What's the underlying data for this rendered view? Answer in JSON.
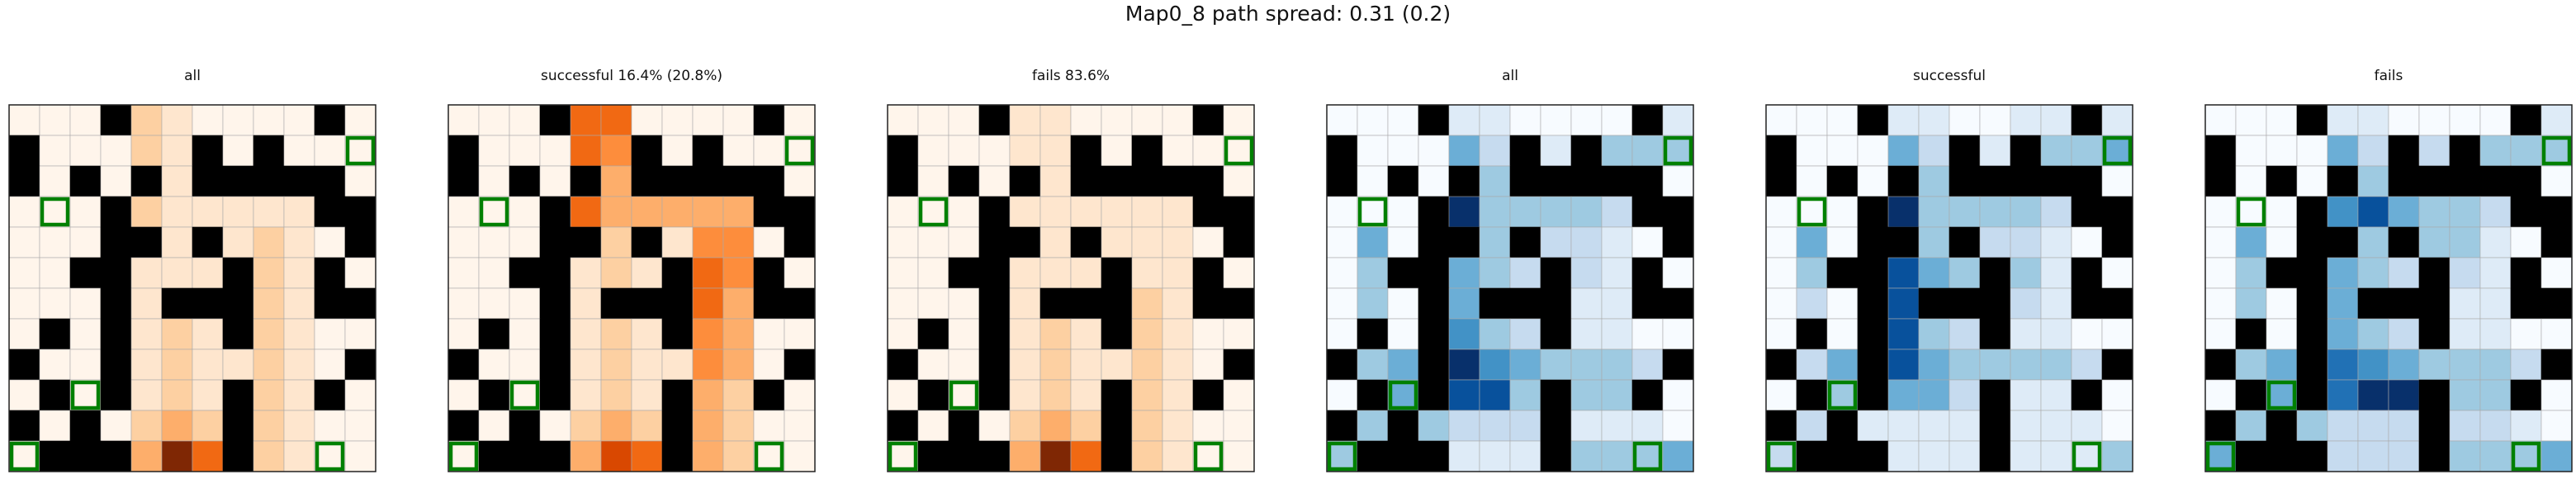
{
  "figure": {
    "suptitle": "Map0_8 path spread: 0.31 (0.2)"
  },
  "colors": {
    "wall": "#000000",
    "goal_outline": "#008000",
    "grid_line": "#aaaaaa",
    "oranges": [
      "#fff5eb",
      "#fee6ce",
      "#fdd0a2",
      "#fdae6b",
      "#fd8d3c",
      "#f16913",
      "#d94801",
      "#a63603",
      "#7f2704"
    ],
    "blues": [
      "#f7fbff",
      "#deebf7",
      "#c6dbef",
      "#9ecae1",
      "#6baed6",
      "#4292c6",
      "#2171b5",
      "#08519c",
      "#08306b"
    ]
  },
  "chart_data": {
    "type": "heatmap",
    "grid_size": [
      12,
      12
    ],
    "walls": [
      [
        0,
        3
      ],
      [
        0,
        10
      ],
      [
        1,
        0
      ],
      [
        1,
        6
      ],
      [
        1,
        8
      ],
      [
        2,
        0
      ],
      [
        2,
        2
      ],
      [
        2,
        4
      ],
      [
        2,
        6
      ],
      [
        2,
        7
      ],
      [
        2,
        8
      ],
      [
        2,
        9
      ],
      [
        2,
        10
      ],
      [
        3,
        3
      ],
      [
        3,
        10
      ],
      [
        3,
        11
      ],
      [
        4,
        3
      ],
      [
        4,
        4
      ],
      [
        4,
        6
      ],
      [
        4,
        11
      ],
      [
        5,
        2
      ],
      [
        5,
        3
      ],
      [
        5,
        7
      ],
      [
        5,
        10
      ],
      [
        6,
        3
      ],
      [
        6,
        5
      ],
      [
        6,
        6
      ],
      [
        6,
        7
      ],
      [
        6,
        10
      ],
      [
        6,
        11
      ],
      [
        7,
        1
      ],
      [
        7,
        3
      ],
      [
        7,
        7
      ],
      [
        8,
        0
      ],
      [
        8,
        3
      ],
      [
        8,
        11
      ],
      [
        9,
        1
      ],
      [
        9,
        3
      ],
      [
        9,
        7
      ],
      [
        9,
        10
      ],
      [
        10,
        0
      ],
      [
        10,
        2
      ],
      [
        10,
        7
      ],
      [
        11,
        1
      ],
      [
        11,
        2
      ],
      [
        11,
        3
      ],
      [
        11,
        7
      ]
    ],
    "goals": [
      [
        1,
        11
      ],
      [
        3,
        1
      ],
      [
        9,
        2
      ],
      [
        11,
        0
      ],
      [
        11,
        10
      ]
    ],
    "panels": [
      {
        "title": "all",
        "colormap": "oranges",
        "values": [
          [
            0,
            0,
            0,
            0,
            2,
            1,
            0,
            0,
            0,
            0,
            0,
            0
          ],
          [
            0,
            0,
            0,
            0,
            2,
            1,
            0,
            0,
            0,
            0,
            0,
            0
          ],
          [
            0,
            0,
            0,
            0,
            2,
            1,
            0,
            0,
            0,
            0,
            0,
            0
          ],
          [
            0,
            0,
            0,
            0,
            2,
            1,
            1,
            1,
            1,
            1,
            0,
            0
          ],
          [
            0,
            0,
            0,
            0,
            1,
            1,
            1,
            1,
            2,
            1,
            0,
            0
          ],
          [
            0,
            0,
            0,
            0,
            1,
            1,
            1,
            1,
            2,
            1,
            0,
            0
          ],
          [
            0,
            0,
            0,
            0,
            1,
            2,
            0,
            0,
            2,
            1,
            0,
            0
          ],
          [
            0,
            0,
            0,
            0,
            1,
            2,
            1,
            0,
            2,
            1,
            0,
            0
          ],
          [
            0,
            0,
            0,
            1,
            1,
            2,
            1,
            1,
            2,
            1,
            0,
            0
          ],
          [
            0,
            0,
            0,
            0,
            1,
            2,
            1,
            0,
            2,
            1,
            0,
            0
          ],
          [
            0,
            0,
            0,
            0,
            2,
            3,
            2,
            0,
            2,
            1,
            0,
            0
          ],
          [
            0,
            0,
            0,
            0,
            3,
            8,
            5,
            0,
            2,
            1,
            0,
            0
          ]
        ]
      },
      {
        "title": "successful 16.4% (20.8%)",
        "colormap": "oranges",
        "values": [
          [
            0,
            0,
            0,
            0,
            5,
            5,
            0,
            0,
            0,
            0,
            0,
            0
          ],
          [
            0,
            0,
            0,
            0,
            5,
            4,
            0,
            0,
            0,
            0,
            0,
            0
          ],
          [
            0,
            0,
            0,
            0,
            5,
            3,
            0,
            0,
            0,
            0,
            0,
            0
          ],
          [
            0,
            0,
            0,
            0,
            5,
            3,
            3,
            3,
            3,
            3,
            0,
            0
          ],
          [
            0,
            0,
            0,
            0,
            2,
            2,
            1,
            1,
            4,
            4,
            0,
            0
          ],
          [
            0,
            0,
            0,
            0,
            1,
            2,
            1,
            1,
            5,
            4,
            0,
            0
          ],
          [
            0,
            0,
            0,
            0,
            1,
            2,
            0,
            0,
            5,
            3,
            0,
            0
          ],
          [
            0,
            0,
            0,
            0,
            1,
            2,
            1,
            0,
            4,
            3,
            0,
            0
          ],
          [
            0,
            0,
            0,
            1,
            1,
            2,
            1,
            1,
            4,
            3,
            0,
            0
          ],
          [
            0,
            0,
            0,
            0,
            1,
            2,
            1,
            0,
            3,
            2,
            0,
            0
          ],
          [
            0,
            0,
            0,
            0,
            2,
            3,
            2,
            0,
            3,
            2,
            0,
            0
          ],
          [
            0,
            0,
            0,
            0,
            3,
            6,
            5,
            0,
            3,
            2,
            0,
            0
          ]
        ]
      },
      {
        "title": "fails 83.6%",
        "colormap": "oranges",
        "values": [
          [
            0,
            0,
            0,
            0,
            1,
            1,
            0,
            0,
            0,
            0,
            0,
            0
          ],
          [
            0,
            0,
            0,
            0,
            1,
            1,
            0,
            0,
            0,
            0,
            0,
            0
          ],
          [
            0,
            0,
            0,
            0,
            1,
            1,
            0,
            0,
            0,
            0,
            0,
            0
          ],
          [
            0,
            0,
            0,
            0,
            1,
            1,
            1,
            1,
            1,
            1,
            0,
            0
          ],
          [
            0,
            0,
            0,
            0,
            1,
            1,
            1,
            1,
            1,
            1,
            0,
            0
          ],
          [
            0,
            0,
            0,
            0,
            1,
            1,
            1,
            1,
            1,
            1,
            0,
            0
          ],
          [
            0,
            0,
            0,
            0,
            1,
            1,
            0,
            0,
            2,
            1,
            0,
            0
          ],
          [
            0,
            0,
            0,
            0,
            1,
            2,
            1,
            0,
            2,
            1,
            0,
            0
          ],
          [
            0,
            0,
            0,
            1,
            1,
            2,
            1,
            1,
            2,
            1,
            0,
            0
          ],
          [
            0,
            0,
            0,
            0,
            1,
            2,
            1,
            0,
            2,
            1,
            0,
            0
          ],
          [
            0,
            0,
            0,
            0,
            2,
            3,
            2,
            0,
            2,
            1,
            0,
            0
          ],
          [
            0,
            0,
            0,
            0,
            3,
            8,
            5,
            0,
            2,
            1,
            0,
            0
          ]
        ]
      },
      {
        "title": "all",
        "colormap": "blues",
        "values": [
          [
            0,
            0,
            0,
            0,
            1,
            1,
            0,
            0,
            0,
            0,
            0,
            1
          ],
          [
            0,
            0,
            0,
            0,
            4,
            2,
            2,
            1,
            2,
            3,
            3,
            3
          ],
          [
            0,
            0,
            0,
            0,
            4,
            3,
            1,
            1,
            1,
            1,
            0,
            0
          ],
          [
            0,
            0,
            0,
            0,
            8,
            3,
            3,
            3,
            3,
            2,
            0,
            0
          ],
          [
            0,
            4,
            0,
            0,
            5,
            3,
            3,
            2,
            2,
            1,
            0,
            0
          ],
          [
            0,
            3,
            0,
            0,
            4,
            3,
            2,
            0,
            2,
            1,
            0,
            0
          ],
          [
            0,
            3,
            0,
            0,
            4,
            0,
            0,
            0,
            1,
            1,
            0,
            0
          ],
          [
            0,
            3,
            0,
            0,
            5,
            3,
            2,
            0,
            1,
            1,
            0,
            0
          ],
          [
            0,
            3,
            4,
            0,
            8,
            5,
            4,
            3,
            3,
            3,
            2,
            0
          ],
          [
            0,
            3,
            4,
            0,
            7,
            7,
            3,
            0,
            3,
            3,
            0,
            0
          ],
          [
            0,
            3,
            0,
            3,
            2,
            2,
            2,
            0,
            1,
            1,
            1,
            0
          ],
          [
            3,
            0,
            0,
            0,
            1,
            1,
            1,
            0,
            3,
            3,
            3,
            4
          ]
        ]
      },
      {
        "title": "successful",
        "colormap": "blues",
        "values": [
          [
            0,
            0,
            0,
            0,
            1,
            1,
            0,
            0,
            1,
            1,
            1,
            1
          ],
          [
            0,
            0,
            0,
            0,
            4,
            2,
            2,
            1,
            2,
            3,
            3,
            4
          ],
          [
            0,
            0,
            0,
            0,
            4,
            3,
            1,
            1,
            1,
            1,
            0,
            0
          ],
          [
            0,
            0,
            0,
            0,
            8,
            3,
            3,
            3,
            3,
            2,
            0,
            0
          ],
          [
            0,
            4,
            0,
            0,
            6,
            3,
            3,
            2,
            2,
            1,
            0,
            0
          ],
          [
            0,
            3,
            0,
            0,
            7,
            4,
            3,
            0,
            3,
            1,
            0,
            0
          ],
          [
            0,
            2,
            0,
            0,
            7,
            0,
            0,
            0,
            2,
            1,
            0,
            0
          ],
          [
            0,
            2,
            0,
            0,
            7,
            3,
            2,
            0,
            1,
            1,
            0,
            0
          ],
          [
            0,
            2,
            4,
            0,
            7,
            4,
            3,
            3,
            3,
            3,
            2,
            0
          ],
          [
            0,
            2,
            3,
            0,
            4,
            4,
            2,
            0,
            1,
            1,
            0,
            0
          ],
          [
            0,
            2,
            0,
            1,
            1,
            1,
            1,
            0,
            1,
            1,
            1,
            0
          ],
          [
            2,
            0,
            0,
            0,
            1,
            1,
            1,
            0,
            1,
            1,
            1,
            3
          ]
        ]
      },
      {
        "title": "fails",
        "colormap": "blues",
        "values": [
          [
            0,
            0,
            0,
            0,
            1,
            1,
            0,
            0,
            0,
            0,
            0,
            1
          ],
          [
            0,
            0,
            0,
            0,
            4,
            2,
            2,
            2,
            2,
            3,
            3,
            3
          ],
          [
            0,
            0,
            0,
            0,
            4,
            3,
            1,
            1,
            1,
            1,
            0,
            0
          ],
          [
            0,
            0,
            0,
            0,
            5,
            7,
            4,
            3,
            3,
            2,
            0,
            0
          ],
          [
            0,
            4,
            0,
            0,
            4,
            3,
            3,
            3,
            3,
            1,
            0,
            0
          ],
          [
            0,
            3,
            0,
            0,
            4,
            3,
            2,
            0,
            2,
            1,
            0,
            0
          ],
          [
            0,
            3,
            0,
            0,
            4,
            0,
            0,
            0,
            1,
            1,
            0,
            0
          ],
          [
            0,
            3,
            0,
            0,
            4,
            3,
            2,
            0,
            1,
            1,
            0,
            0
          ],
          [
            0,
            3,
            4,
            0,
            6,
            5,
            4,
            3,
            3,
            3,
            2,
            0
          ],
          [
            0,
            3,
            4,
            0,
            6,
            8,
            8,
            0,
            3,
            3,
            0,
            0
          ],
          [
            0,
            3,
            0,
            3,
            2,
            2,
            2,
            0,
            2,
            2,
            1,
            0
          ],
          [
            4,
            0,
            0,
            0,
            2,
            2,
            2,
            0,
            3,
            3,
            3,
            4
          ]
        ]
      }
    ]
  }
}
